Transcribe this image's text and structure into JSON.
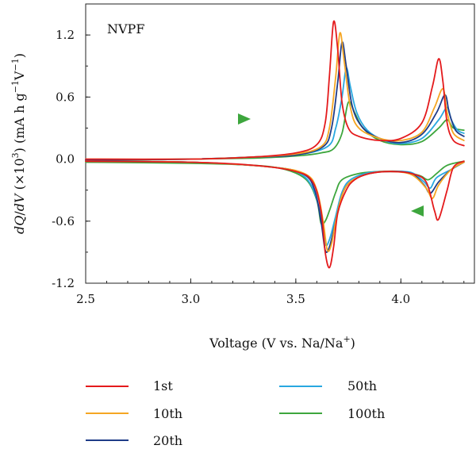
{
  "chart_data": {
    "type": "line",
    "annotation": "NVPF",
    "xlabel": "Voltage (V vs. Na/Na",
    "xlabel_sup": "+",
    "xlabel_end": ")",
    "ylabel_parts": {
      "dq": "dQ",
      "slash": "/",
      "dv": "dV",
      "mid": " (×10",
      "sup1": "3",
      "mid2": ") (mA h g",
      "sup2": "−1",
      "mid3": "V",
      "sup3": "−1",
      "end": ")"
    },
    "xlim": [
      2.5,
      4.35
    ],
    "ylim": [
      -1.2,
      1.5
    ],
    "xticks": [
      2.5,
      3.0,
      3.5,
      4.0
    ],
    "xtick_labels": [
      "2.5",
      "3.0",
      "3.5",
      "4.0"
    ],
    "yticks": [
      1.2,
      0.6,
      0.0,
      -0.6,
      -1.2
    ],
    "ytick_labels": [
      "1.2",
      "0.6",
      "0.0",
      "-0.6",
      "-1.2"
    ],
    "grid": false,
    "legend_position": "bottom",
    "series": [
      {
        "name": "1st",
        "color": "#e41a1c",
        "charge": [
          [
            2.5,
            0.0
          ],
          [
            3.0,
            0.0
          ],
          [
            3.3,
            0.02
          ],
          [
            3.5,
            0.06
          ],
          [
            3.6,
            0.14
          ],
          [
            3.64,
            0.35
          ],
          [
            3.66,
            0.8
          ],
          [
            3.68,
            1.33
          ],
          [
            3.7,
            1.05
          ],
          [
            3.72,
            0.55
          ],
          [
            3.75,
            0.3
          ],
          [
            3.8,
            0.22
          ],
          [
            3.9,
            0.18
          ],
          [
            4.0,
            0.2
          ],
          [
            4.1,
            0.35
          ],
          [
            4.15,
            0.7
          ],
          [
            4.18,
            0.97
          ],
          [
            4.2,
            0.75
          ],
          [
            4.22,
            0.35
          ],
          [
            4.25,
            0.18
          ],
          [
            4.3,
            0.13
          ]
        ],
        "discharge": [
          [
            4.3,
            -0.02
          ],
          [
            4.25,
            -0.08
          ],
          [
            4.22,
            -0.3
          ],
          [
            4.18,
            -0.58
          ],
          [
            4.16,
            -0.5
          ],
          [
            4.12,
            -0.22
          ],
          [
            4.05,
            -0.14
          ],
          [
            3.95,
            -0.12
          ],
          [
            3.85,
            -0.14
          ],
          [
            3.78,
            -0.2
          ],
          [
            3.74,
            -0.3
          ],
          [
            3.7,
            -0.52
          ],
          [
            3.68,
            -0.85
          ],
          [
            3.66,
            -1.05
          ],
          [
            3.64,
            -0.9
          ],
          [
            3.62,
            -0.5
          ],
          [
            3.58,
            -0.22
          ],
          [
            3.5,
            -0.12
          ],
          [
            3.3,
            -0.06
          ],
          [
            3.0,
            -0.03
          ],
          [
            2.5,
            -0.02
          ]
        ]
      },
      {
        "name": "10th",
        "color": "#f5a623",
        "charge": [
          [
            2.5,
            0.0
          ],
          [
            3.0,
            0.0
          ],
          [
            3.3,
            0.02
          ],
          [
            3.5,
            0.05
          ],
          [
            3.62,
            0.12
          ],
          [
            3.66,
            0.3
          ],
          [
            3.69,
            0.8
          ],
          [
            3.71,
            1.22
          ],
          [
            3.73,
            0.95
          ],
          [
            3.76,
            0.5
          ],
          [
            3.8,
            0.3
          ],
          [
            3.9,
            0.2
          ],
          [
            4.0,
            0.18
          ],
          [
            4.1,
            0.26
          ],
          [
            4.16,
            0.5
          ],
          [
            4.2,
            0.68
          ],
          [
            4.22,
            0.45
          ],
          [
            4.25,
            0.25
          ],
          [
            4.3,
            0.18
          ]
        ],
        "discharge": [
          [
            4.3,
            -0.03
          ],
          [
            4.24,
            -0.1
          ],
          [
            4.18,
            -0.25
          ],
          [
            4.15,
            -0.38
          ],
          [
            4.12,
            -0.28
          ],
          [
            4.05,
            -0.15
          ],
          [
            3.95,
            -0.12
          ],
          [
            3.85,
            -0.14
          ],
          [
            3.76,
            -0.22
          ],
          [
            3.72,
            -0.35
          ],
          [
            3.69,
            -0.6
          ],
          [
            3.67,
            -0.82
          ],
          [
            3.65,
            -0.88
          ],
          [
            3.63,
            -0.6
          ],
          [
            3.6,
            -0.3
          ],
          [
            3.55,
            -0.15
          ],
          [
            3.4,
            -0.08
          ],
          [
            3.0,
            -0.03
          ],
          [
            2.5,
            -0.02
          ]
        ]
      },
      {
        "name": "20th",
        "color": "#1f3c88",
        "charge": [
          [
            2.5,
            -0.01
          ],
          [
            3.0,
            0.0
          ],
          [
            3.3,
            0.02
          ],
          [
            3.5,
            0.04
          ],
          [
            3.63,
            0.12
          ],
          [
            3.67,
            0.3
          ],
          [
            3.7,
            0.75
          ],
          [
            3.72,
            1.13
          ],
          [
            3.74,
            0.9
          ],
          [
            3.77,
            0.5
          ],
          [
            3.82,
            0.3
          ],
          [
            3.9,
            0.2
          ],
          [
            4.0,
            0.16
          ],
          [
            4.1,
            0.24
          ],
          [
            4.17,
            0.45
          ],
          [
            4.21,
            0.62
          ],
          [
            4.23,
            0.45
          ],
          [
            4.26,
            0.28
          ],
          [
            4.3,
            0.22
          ]
        ],
        "discharge": [
          [
            4.3,
            -0.03
          ],
          [
            4.24,
            -0.1
          ],
          [
            4.18,
            -0.22
          ],
          [
            4.14,
            -0.33
          ],
          [
            4.11,
            -0.25
          ],
          [
            4.05,
            -0.14
          ],
          [
            3.95,
            -0.12
          ],
          [
            3.85,
            -0.14
          ],
          [
            3.76,
            -0.22
          ],
          [
            3.72,
            -0.35
          ],
          [
            3.69,
            -0.6
          ],
          [
            3.66,
            -0.85
          ],
          [
            3.64,
            -0.88
          ],
          [
            3.62,
            -0.6
          ],
          [
            3.59,
            -0.3
          ],
          [
            3.54,
            -0.15
          ],
          [
            3.4,
            -0.08
          ],
          [
            3.0,
            -0.03
          ],
          [
            2.5,
            -0.02
          ]
        ]
      },
      {
        "name": "50th",
        "color": "#29a8e0",
        "charge": [
          [
            2.5,
            -0.01
          ],
          [
            3.0,
            0.0
          ],
          [
            3.3,
            0.02
          ],
          [
            3.5,
            0.04
          ],
          [
            3.65,
            0.12
          ],
          [
            3.69,
            0.3
          ],
          [
            3.72,
            0.6
          ],
          [
            3.74,
            0.88
          ],
          [
            3.76,
            0.7
          ],
          [
            3.79,
            0.45
          ],
          [
            3.84,
            0.28
          ],
          [
            3.92,
            0.18
          ],
          [
            4.0,
            0.15
          ],
          [
            4.1,
            0.2
          ],
          [
            4.18,
            0.38
          ],
          [
            4.22,
            0.5
          ],
          [
            4.24,
            0.38
          ],
          [
            4.27,
            0.28
          ],
          [
            4.3,
            0.25
          ]
        ],
        "discharge": [
          [
            4.3,
            -0.03
          ],
          [
            4.24,
            -0.1
          ],
          [
            4.17,
            -0.18
          ],
          [
            4.14,
            -0.28
          ],
          [
            4.11,
            -0.22
          ],
          [
            4.05,
            -0.13
          ],
          [
            3.95,
            -0.12
          ],
          [
            3.85,
            -0.13
          ],
          [
            3.76,
            -0.2
          ],
          [
            3.72,
            -0.32
          ],
          [
            3.69,
            -0.55
          ],
          [
            3.66,
            -0.78
          ],
          [
            3.64,
            -0.82
          ],
          [
            3.62,
            -0.55
          ],
          [
            3.58,
            -0.28
          ],
          [
            3.52,
            -0.14
          ],
          [
            3.4,
            -0.08
          ],
          [
            3.0,
            -0.03
          ],
          [
            2.5,
            -0.02
          ]
        ]
      },
      {
        "name": "100th",
        "color": "#3da63d",
        "charge": [
          [
            2.5,
            -0.01
          ],
          [
            3.0,
            0.0
          ],
          [
            3.3,
            0.01
          ],
          [
            3.5,
            0.03
          ],
          [
            3.62,
            0.06
          ],
          [
            3.68,
            0.1
          ],
          [
            3.72,
            0.25
          ],
          [
            3.75,
            0.55
          ],
          [
            3.78,
            0.45
          ],
          [
            3.82,
            0.3
          ],
          [
            3.9,
            0.18
          ],
          [
            4.0,
            0.14
          ],
          [
            4.1,
            0.17
          ],
          [
            4.18,
            0.3
          ],
          [
            4.22,
            0.38
          ],
          [
            4.25,
            0.3
          ],
          [
            4.3,
            0.28
          ]
        ],
        "discharge": [
          [
            4.3,
            -0.02
          ],
          [
            4.22,
            -0.06
          ],
          [
            4.17,
            -0.14
          ],
          [
            4.13,
            -0.2
          ],
          [
            4.09,
            -0.16
          ],
          [
            4.0,
            -0.12
          ],
          [
            3.9,
            -0.12
          ],
          [
            3.8,
            -0.14
          ],
          [
            3.72,
            -0.2
          ],
          [
            3.69,
            -0.32
          ],
          [
            3.66,
            -0.5
          ],
          [
            3.64,
            -0.6
          ],
          [
            3.62,
            -0.62
          ],
          [
            3.6,
            -0.4
          ],
          [
            3.55,
            -0.2
          ],
          [
            3.45,
            -0.1
          ],
          [
            3.3,
            -0.06
          ],
          [
            3.0,
            -0.04
          ],
          [
            2.5,
            -0.03
          ]
        ]
      }
    ]
  }
}
